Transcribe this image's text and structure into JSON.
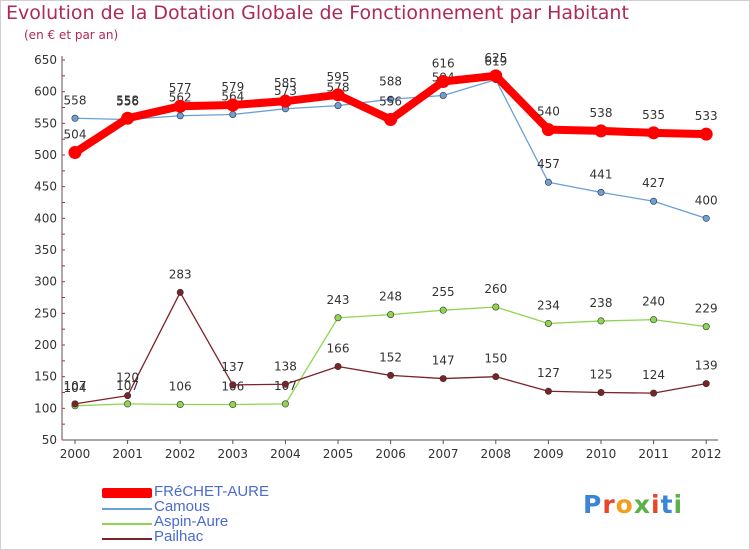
{
  "header": {
    "title": "Evolution de la Dotation Globale de Fonctionnement par Habitant",
    "subtitle": "(en € et par an)"
  },
  "brand": {
    "logo_text": "Proxiti"
  },
  "chart_data": {
    "type": "line",
    "title": "Evolution de la Dotation Globale de Fonctionnement par Habitant",
    "subtitle": "(en € et par an)",
    "xlabel": "",
    "ylabel": "",
    "x": [
      "2000",
      "2001",
      "2002",
      "2003",
      "2004",
      "2005",
      "2006",
      "2007",
      "2008",
      "2009",
      "2010",
      "2011",
      "2012"
    ],
    "ylim": [
      50,
      650
    ],
    "yticks": [
      50,
      100,
      150,
      200,
      250,
      300,
      350,
      400,
      450,
      500,
      550,
      600,
      650
    ],
    "grid": false,
    "legend_position": "bottom-left",
    "series": [
      {
        "name": "FRéCHET-AURE",
        "color": "#ff0000",
        "values": [
          504,
          558,
          577,
          579,
          585,
          595,
          556,
          616,
          625,
          540,
          538,
          535,
          533
        ]
      },
      {
        "name": "Camous",
        "color": "#6a9fd8",
        "values": [
          558,
          556,
          562,
          564,
          573,
          578,
          588,
          594,
          619,
          457,
          441,
          427,
          400
        ]
      },
      {
        "name": "Aspin-Aure",
        "color": "#8ed650",
        "values": [
          104,
          107,
          106,
          106,
          107,
          243,
          248,
          255,
          260,
          234,
          238,
          240,
          229
        ]
      },
      {
        "name": "Pailhac",
        "color": "#7a2328",
        "values": [
          107,
          120,
          283,
          137,
          138,
          166,
          152,
          147,
          150,
          127,
          125,
          124,
          139
        ]
      }
    ]
  }
}
